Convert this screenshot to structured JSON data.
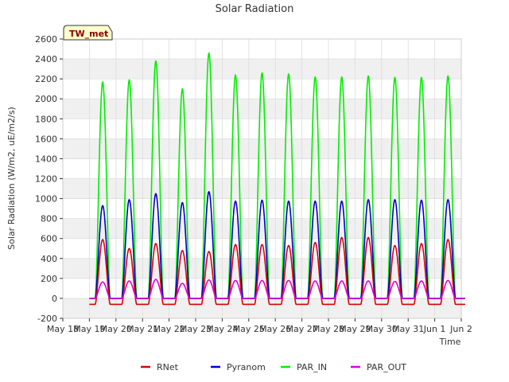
{
  "chart_data": {
    "type": "line",
    "title": "Solar Radiation",
    "xlabel": "Time",
    "ylabel": "Solar Radiation (W/m2, uE/m2/s)",
    "badge": "TW_met",
    "ylim": [
      -200,
      2600
    ],
    "yticks": [
      -200,
      0,
      200,
      400,
      600,
      800,
      1000,
      1200,
      1400,
      1600,
      1800,
      2000,
      2200,
      2400,
      2600
    ],
    "xlim": [
      0,
      15
    ],
    "xticks": [
      {
        "x": 0,
        "label": "May 18"
      },
      {
        "x": 1,
        "label": "May 19"
      },
      {
        "x": 2,
        "label": "May 20"
      },
      {
        "x": 3,
        "label": "May 21"
      },
      {
        "x": 4,
        "label": "May 22"
      },
      {
        "x": 5,
        "label": "May 23"
      },
      {
        "x": 6,
        "label": "May 24"
      },
      {
        "x": 7,
        "label": "May 25"
      },
      {
        "x": 8,
        "label": "May 26"
      },
      {
        "x": 9,
        "label": "May 27"
      },
      {
        "x": 10,
        "label": "May 28"
      },
      {
        "x": 11,
        "label": "May 29"
      },
      {
        "x": 12,
        "label": "May 30"
      },
      {
        "x": 13,
        "label": "May 31"
      },
      {
        "x": 14,
        "label": "Jun 1"
      },
      {
        "x": 15,
        "label": "Jun 2"
      }
    ],
    "day_start": 1,
    "day_count": 14,
    "series": [
      {
        "name": "RNet",
        "color": "#dd0000",
        "night": -60,
        "daily_peak": [
          590,
          500,
          550,
          480,
          470,
          540,
          540,
          530,
          560,
          610,
          610,
          530,
          550,
          590
        ]
      },
      {
        "name": "Pyranom",
        "color": "#0000cc",
        "night": 0,
        "daily_peak": [
          930,
          990,
          1050,
          960,
          1070,
          975,
          985,
          975,
          975,
          975,
          990,
          990,
          985,
          990
        ]
      },
      {
        "name": "PAR_IN",
        "color": "#00ee00",
        "night": 0,
        "daily_peak": [
          2170,
          2190,
          2380,
          2100,
          2460,
          2240,
          2260,
          2250,
          2220,
          2220,
          2230,
          2215,
          2215,
          2230
        ]
      },
      {
        "name": "PAR_OUT",
        "color": "#dd00dd",
        "night": 0,
        "daily_peak": [
          165,
          175,
          190,
          150,
          185,
          180,
          180,
          180,
          175,
          175,
          175,
          170,
          175,
          180
        ]
      }
    ],
    "grid": true,
    "legend_position": "bottom"
  }
}
